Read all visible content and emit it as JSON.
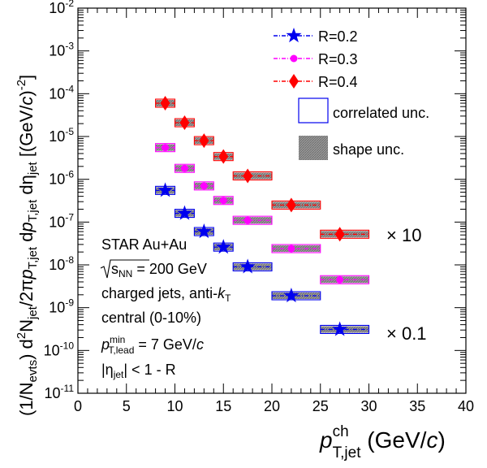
{
  "chart_data": {
    "type": "scatter",
    "x_scale": "linear",
    "y_scale": "log",
    "xlim": [
      0,
      40
    ],
    "ylim": [
      1e-11,
      0.01
    ],
    "xticks": [
      0,
      5,
      10,
      15,
      20,
      25,
      30,
      35,
      40
    ],
    "xtick_labels": [
      "0",
      "5",
      "10",
      "15",
      "20",
      "25",
      "30",
      "35",
      "40"
    ],
    "yticks": [
      1e-11,
      1e-10,
      1e-09,
      1e-08,
      1e-07,
      1e-06,
      1e-05,
      0.0001,
      0.001,
      0.01
    ],
    "xlabel": {
      "main": "p",
      "sup": "ch",
      "sub": "T,jet",
      "unit": " (GeV/c)"
    },
    "ylabel": "(1/N_evts) d²N_jet/2πp_T,jet dp_T,jet dη_jet [(GeV/c)^-2]",
    "series": [
      {
        "name": "R=0.2",
        "color": "#0000ee",
        "marker": "star",
        "x": [
          9.0,
          11.0,
          13.0,
          15.0,
          17.5,
          22.0,
          27.0
        ],
        "y": [
          5.5e-07,
          1.6e-07,
          6e-08,
          2.6e-08,
          9e-09,
          1.9e-09,
          3.1e-10
        ],
        "x_low": [
          8.0,
          10.0,
          12.0,
          14.0,
          16.0,
          20.0,
          25.0
        ],
        "x_high": [
          10.0,
          12.0,
          14.0,
          16.0,
          20.0,
          25.0,
          30.0
        ]
      },
      {
        "name": "R=0.3",
        "color": "#ff00ff",
        "marker": "circle",
        "x": [
          9.0,
          11.0,
          13.0,
          15.0,
          17.5,
          22.0,
          27.0
        ],
        "y": [
          5.5e-06,
          1.8e-06,
          7e-07,
          3.2e-07,
          1.1e-07,
          2.4e-08,
          4.5e-09
        ],
        "x_low": [
          8.0,
          10.0,
          12.0,
          14.0,
          16.0,
          20.0,
          25.0
        ],
        "x_high": [
          10.0,
          12.0,
          14.0,
          16.0,
          20.0,
          25.0,
          30.0
        ]
      },
      {
        "name": "R=0.4",
        "color": "#ff0000",
        "marker": "diamond",
        "x": [
          9.0,
          11.0,
          13.0,
          15.0,
          17.5,
          22.0,
          27.0
        ],
        "y": [
          6e-05,
          2.1e-05,
          8e-06,
          3.4e-06,
          1.2e-06,
          2.5e-07,
          5.2e-08
        ],
        "x_low": [
          8.0,
          10.0,
          12.0,
          14.0,
          16.0,
          20.0,
          25.0
        ],
        "x_high": [
          10.0,
          12.0,
          14.0,
          16.0,
          20.0,
          25.0,
          30.0
        ]
      }
    ],
    "legend": {
      "placement": "top-right",
      "entries": [
        "R=0.2",
        "R=0.3",
        "R=0.4"
      ],
      "box_entries": [
        "correlated unc.",
        "shape unc."
      ]
    },
    "annotations": {
      "scale_r04": "× 10",
      "scale_r02": "× 0.1",
      "lines": [
        "STAR Au+Au",
        "√s_NN = 200 GeV",
        "charged jets, anti-k_T",
        "central (0-10%)",
        "p_T,lead^min = 7 GeV/c",
        "|η_jet| < 1 - R"
      ]
    }
  },
  "texts": {
    "legend_r02": "R=0.2",
    "legend_r03": "R=0.3",
    "legend_r04": "R=0.4",
    "legend_corr": "correlated unc.",
    "legend_shape": "shape unc.",
    "times10": "× 10",
    "times01": "× 0.1",
    "star": "STAR Au+Au",
    "sqrt_s": "s",
    "sqrt_sub": "NN",
    "sqrt_val": " = 200 GeV",
    "charged_jets": "charged jets, anti-",
    "kt_k": "k",
    "kt_sub": "T",
    "central": "central (0-10%)",
    "plead_p": "p",
    "plead_sup": "min",
    "plead_sub": "T,lead",
    "plead_val": " = 7 GeV/",
    "plead_c": "c",
    "eta_bar": "|η",
    "eta_sub": "jet",
    "eta_val": "| < 1 - R",
    "xlab_p": "p",
    "xlab_sup": "ch",
    "xlab_sub": "T,jet",
    "xlab_unit1": " (GeV/",
    "xlab_c": "c",
    "xlab_unit2": ")",
    "ylab_a": "(1/N",
    "ylab_evts": "evts",
    "ylab_b": ") d",
    "ylab_two": "2",
    "ylab_c": "N",
    "ylab_jet1": "jet",
    "ylab_d": "/2π",
    "ylab_p1": "p",
    "ylab_tjet1": "T,jet",
    "ylab_e": " d",
    "ylab_p2": "p",
    "ylab_tjet2": "T,jet",
    "ylab_f": " dη",
    "ylab_jet2": "jet",
    "ylab_g": " [(GeV/",
    "ylab_c2": "c",
    "ylab_h": ")",
    "ylab_m2": "-2",
    "ylab_i": "]"
  }
}
